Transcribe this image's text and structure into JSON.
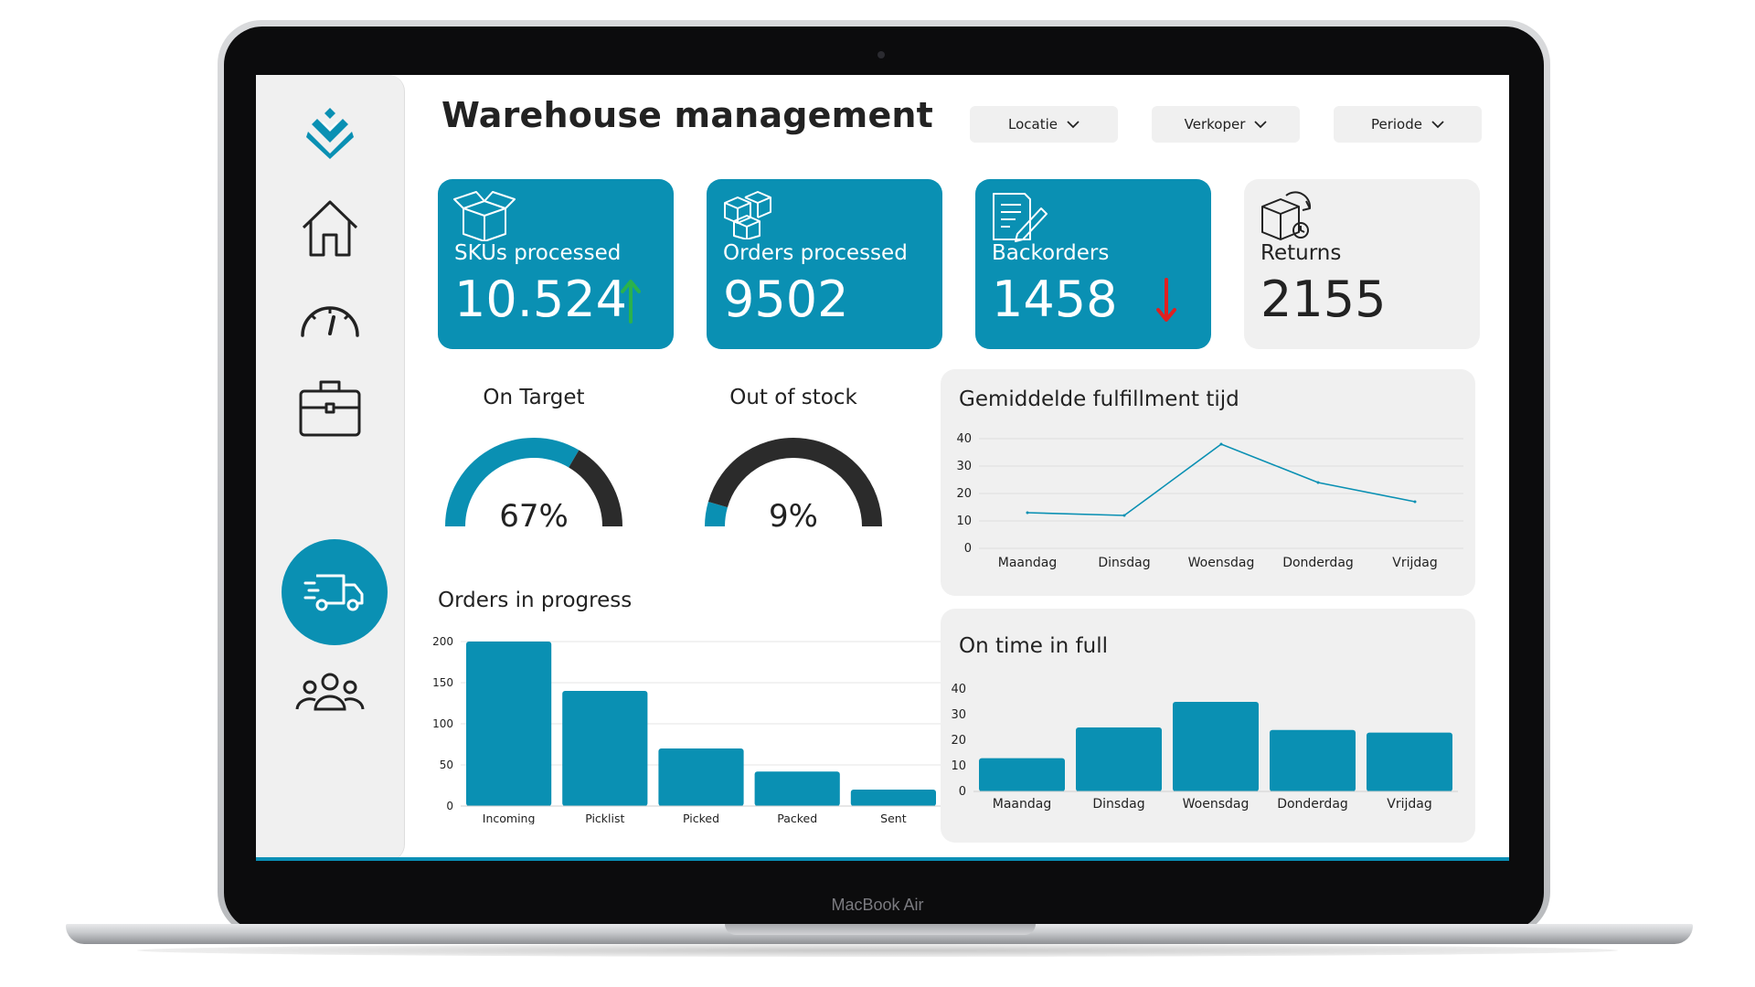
{
  "device": {
    "label": "MacBook Air"
  },
  "header": {
    "title": "Warehouse management"
  },
  "filters": [
    {
      "label": "Locatie"
    },
    {
      "label": "Verkoper"
    },
    {
      "label": "Periode"
    }
  ],
  "sidebar": {
    "items": [
      {
        "icon": "logo-icon"
      },
      {
        "icon": "home-icon"
      },
      {
        "icon": "dashboard-gauge-icon"
      },
      {
        "icon": "briefcase-icon"
      },
      {
        "icon": "delivery-truck-icon",
        "active": true
      },
      {
        "icon": "users-icon"
      }
    ]
  },
  "kpis": [
    {
      "label": "SKUs processed",
      "value": "10.524",
      "trend": "up",
      "icon": "open-box-icon"
    },
    {
      "label": "Orders processed",
      "value": "9502",
      "icon": "boxes-icon"
    },
    {
      "label": "Backorders",
      "value": "1458",
      "trend": "down",
      "icon": "clipboard-pen-icon"
    },
    {
      "label": "Returns",
      "value": "2155",
      "icon": "return-box-icon"
    }
  ],
  "gauges": [
    {
      "title": "On Target",
      "value_text": "67%",
      "fraction": 0.67
    },
    {
      "title": "Out of stock",
      "value_text": "9%",
      "fraction": 0.09
    }
  ],
  "colors": {
    "accent": "#0a90b3",
    "dark": "#2b2b2b",
    "panel": "#f0f0f0",
    "up": "#2bb24c",
    "down": "#e02020"
  },
  "chart_data": [
    {
      "type": "bar",
      "title": "Orders in progress",
      "categories": [
        "Incoming",
        "Picklist",
        "Picked",
        "Packed",
        "Sent"
      ],
      "values": [
        200,
        140,
        70,
        42,
        20
      ],
      "ylim": [
        0,
        200
      ],
      "yticks": [
        0,
        50,
        100,
        150,
        200
      ],
      "grid": true
    },
    {
      "type": "line",
      "title": "Gemiddelde fulfillment tijd",
      "categories": [
        "Maandag",
        "Dinsdag",
        "Woensdag",
        "Donderdag",
        "Vrijdag"
      ],
      "values": [
        13,
        12,
        38,
        24,
        17
      ],
      "ylim": [
        0,
        40
      ],
      "yticks": [
        0,
        10,
        20,
        30,
        40
      ],
      "grid": true
    },
    {
      "type": "bar",
      "title": "On time in full",
      "categories": [
        "Maandag",
        "Dinsdag",
        "Woensdag",
        "Donderdag",
        "Vrijdag"
      ],
      "values": [
        13,
        25,
        35,
        24,
        23
      ],
      "ylim": [
        0,
        40
      ],
      "yticks": [
        0,
        10,
        20,
        30,
        40
      ],
      "grid": false
    }
  ]
}
